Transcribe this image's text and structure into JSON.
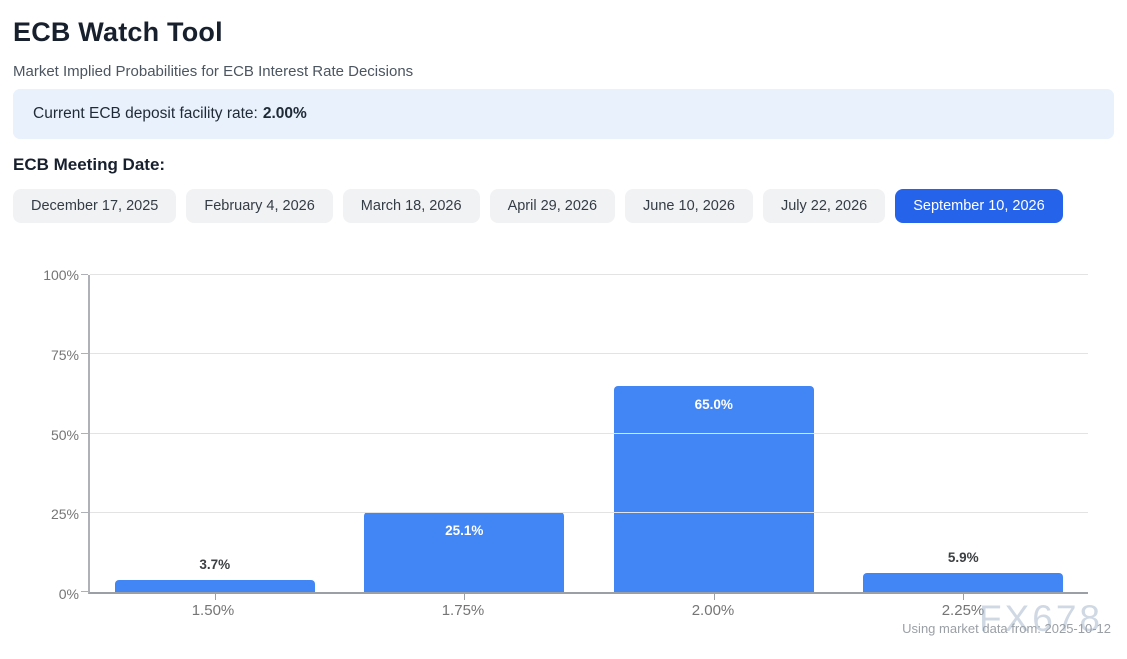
{
  "page": {
    "title": "ECB Watch Tool",
    "subtitle": "Market Implied Probabilities for ECB Interest Rate Decisions"
  },
  "banner": {
    "label": "Current ECB deposit facility rate:",
    "value": "2.00%"
  },
  "meeting_selector": {
    "label": "ECB Meeting Date:",
    "selected_index": 6,
    "options": [
      {
        "label": "December 17, 2025"
      },
      {
        "label": "February 4, 2026"
      },
      {
        "label": "March 18, 2026"
      },
      {
        "label": "April 29, 2026"
      },
      {
        "label": "June 10, 2026"
      },
      {
        "label": "July 22, 2026"
      },
      {
        "label": "September 10, 2026"
      }
    ]
  },
  "chart_data": {
    "type": "bar",
    "title": "",
    "xlabel": "",
    "ylabel": "",
    "categories": [
      "1.50%",
      "1.75%",
      "2.00%",
      "2.25%"
    ],
    "values": [
      3.7,
      25.1,
      65.0,
      5.9
    ],
    "value_labels": [
      "3.7%",
      "25.1%",
      "65.0%",
      "5.9%"
    ],
    "ylim": [
      0,
      100
    ],
    "yticks": [
      0,
      25,
      50,
      75,
      100
    ],
    "ytick_labels": [
      "0%",
      "25%",
      "50%",
      "75%",
      "100%"
    ],
    "grid": true,
    "legend": false,
    "bar_color": "#4285f4"
  },
  "footer": {
    "watermark": "FX678",
    "source_note": "Using market data from: 2025-10-12"
  },
  "colors": {
    "accent": "#2563eb",
    "bar": "#4285f4",
    "banner_bg": "#e9f1fd"
  }
}
